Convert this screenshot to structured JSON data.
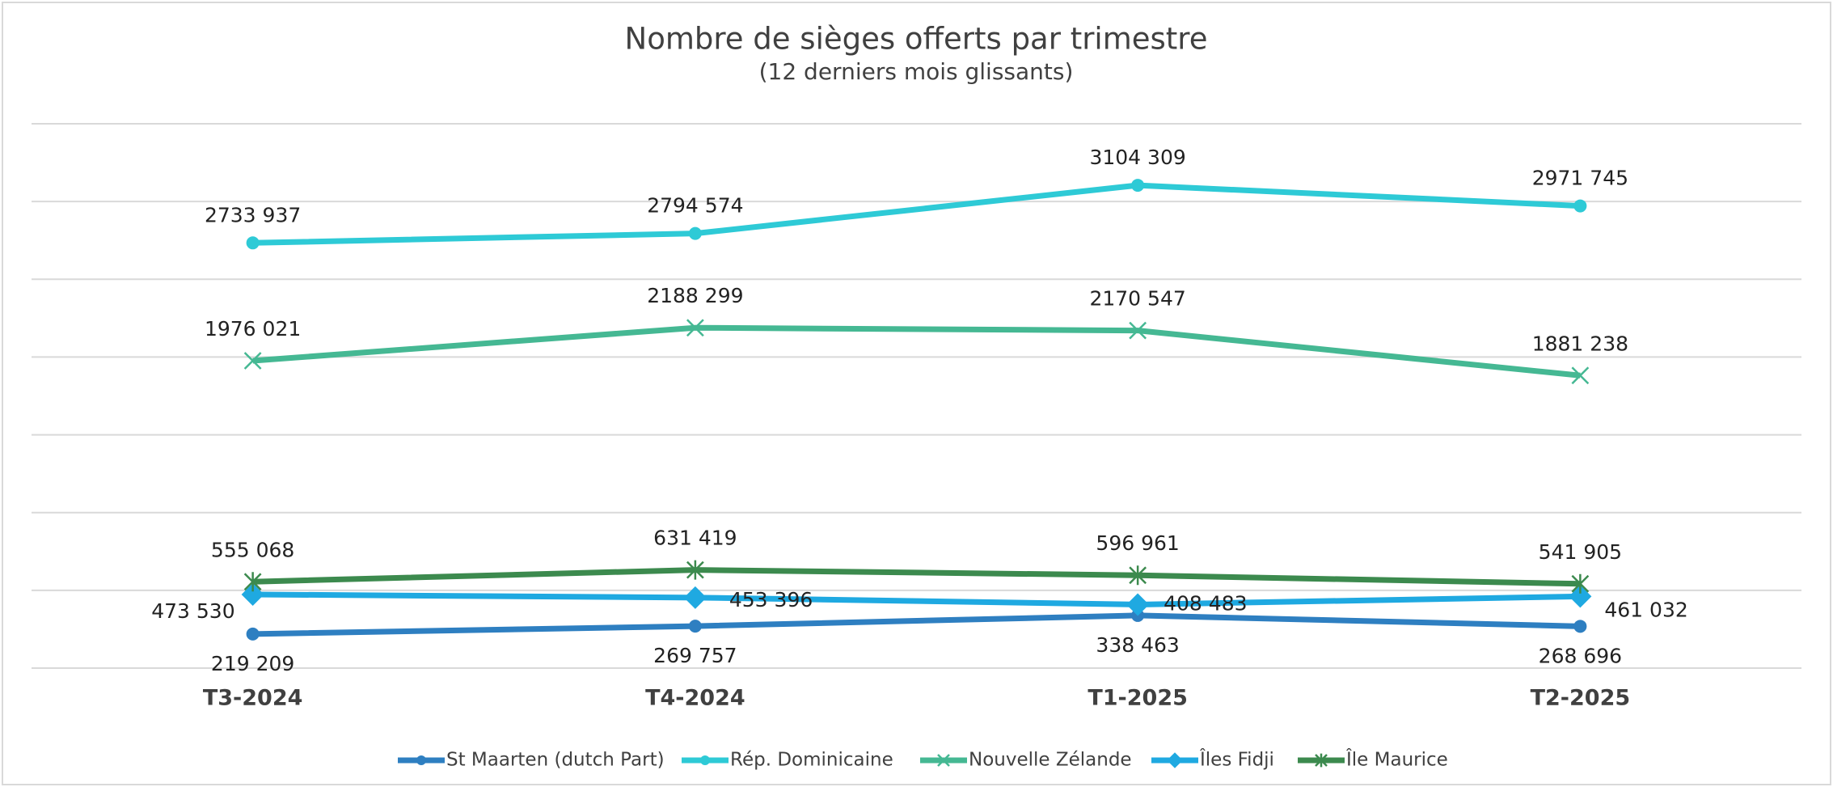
{
  "chart_data": {
    "type": "line",
    "title": "Nombre de sièges offerts par trimestre",
    "subtitle": "(12 derniers mois glissants)",
    "categories": [
      "T3-2024",
      "T4-2024",
      "T1-2025",
      "T2-2025"
    ],
    "ylim": [
      0,
      3500000
    ],
    "yticks": [
      0,
      500000,
      1000000,
      1500000,
      2000000,
      2500000,
      3000000,
      3500000
    ],
    "grid": true,
    "legend": "bottom",
    "series": [
      {
        "name": "St Maarten (dutch Part)",
        "color": "#2e7fc1",
        "marker": "circle",
        "values": [
          219209,
          269757,
          338463,
          268696
        ],
        "value_labels": [
          "219 209",
          "269 757",
          "338 463",
          "268 696"
        ]
      },
      {
        "name": "Rép. Dominicaine",
        "color": "#2ecad6",
        "marker": "circle",
        "values": [
          2733937,
          2794574,
          3104309,
          2971745
        ],
        "value_labels": [
          "2733 937",
          "2794 574",
          "3104 309",
          "2971 745"
        ]
      },
      {
        "name": "Nouvelle Zélande",
        "color": "#45b893",
        "marker": "x",
        "values": [
          1976021,
          2188299,
          2170547,
          1881238
        ],
        "value_labels": [
          "1976 021",
          "2188 299",
          "2170 547",
          "1881 238"
        ]
      },
      {
        "name": "Îles Fidji",
        "color": "#1fa9e1",
        "marker": "diamond",
        "values": [
          473530,
          453396,
          408483,
          461032
        ],
        "value_labels": [
          "473 530",
          "453 396",
          "408 483",
          "461 032"
        ]
      },
      {
        "name": "Île Maurice",
        "color": "#3c8a4e",
        "marker": "star",
        "values": [
          555068,
          631419,
          596961,
          541905
        ],
        "value_labels": [
          "555 068",
          "631 419",
          "596 961",
          "541 905"
        ]
      }
    ]
  }
}
